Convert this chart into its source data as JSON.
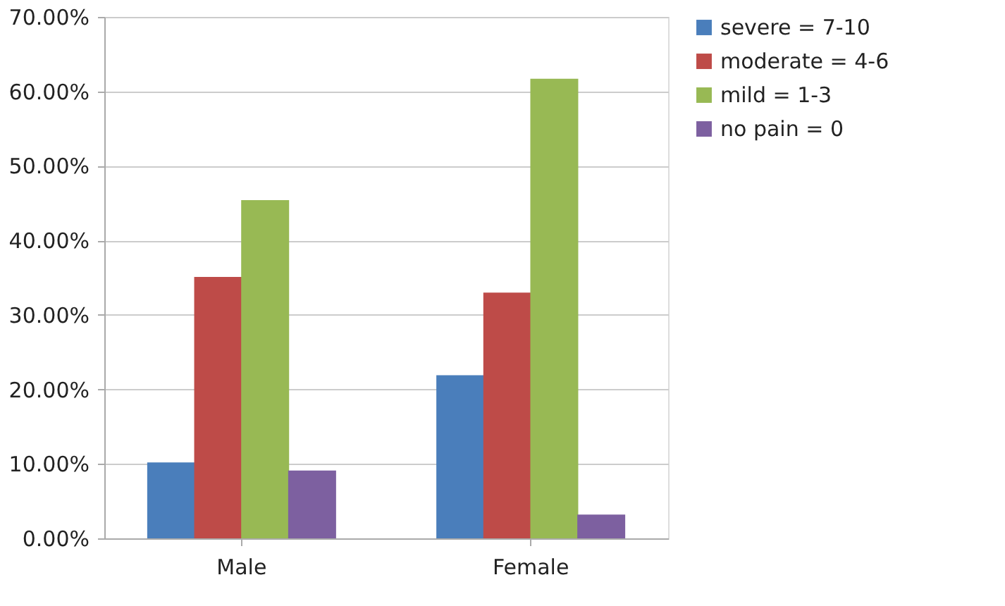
{
  "chart_data": {
    "type": "bar",
    "categories": [
      "Male",
      "Female"
    ],
    "series": [
      {
        "name": "severe = 7-10",
        "color": "#4a7ebb",
        "values": [
          10.2,
          21.9
        ]
      },
      {
        "name": "moderate = 4-6",
        "color": "#be4b48",
        "values": [
          35.1,
          33.0
        ]
      },
      {
        "name": "mild = 1-3",
        "color": "#98b954",
        "values": [
          45.4,
          61.7
        ]
      },
      {
        "name": "no pain = 0",
        "color": "#7d60a0",
        "values": [
          9.1,
          3.2
        ]
      }
    ],
    "ylim": [
      0,
      70
    ],
    "yticks": [
      {
        "value": 0,
        "label": "0.00%"
      },
      {
        "value": 10,
        "label": "10.00%"
      },
      {
        "value": 20,
        "label": "20.00%"
      },
      {
        "value": 30,
        "label": "30.00%"
      },
      {
        "value": 40,
        "label": "40.00%"
      },
      {
        "value": 50,
        "label": "50.00%"
      },
      {
        "value": 60,
        "label": "60.00%"
      },
      {
        "value": 70,
        "label": "70.00%"
      }
    ],
    "grid": "y",
    "legend": "right"
  }
}
